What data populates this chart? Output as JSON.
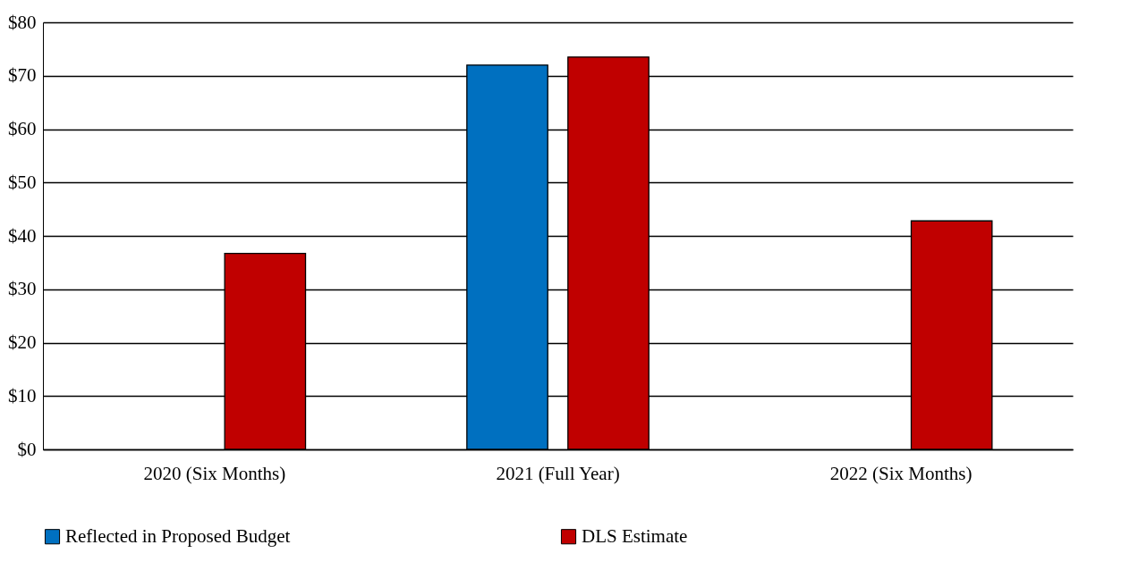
{
  "chart_data": {
    "type": "bar",
    "categories": [
      "2020 (Six Months)",
      "2021 (Full Year)",
      "2022 (Six Months)"
    ],
    "series": [
      {
        "name": "Reflected in Proposed Budget",
        "color": "#0070c0",
        "values": [
          null,
          72.0,
          null
        ]
      },
      {
        "name": "DLS Estimate",
        "color": "#c00000",
        "values": [
          36.7,
          73.5,
          42.8
        ]
      }
    ],
    "ylim": [
      0,
      80
    ],
    "yticks": [
      {
        "value": 0,
        "label": "$0"
      },
      {
        "value": 10,
        "label": "$10"
      },
      {
        "value": 20,
        "label": "$20"
      },
      {
        "value": 30,
        "label": "$30"
      },
      {
        "value": 40,
        "label": "$40"
      },
      {
        "value": 50,
        "label": "$50"
      },
      {
        "value": 60,
        "label": "$60"
      },
      {
        "value": 70,
        "label": "$70"
      },
      {
        "value": 80,
        "label": "$80"
      }
    ],
    "grid": "y",
    "legend": "bottom"
  }
}
